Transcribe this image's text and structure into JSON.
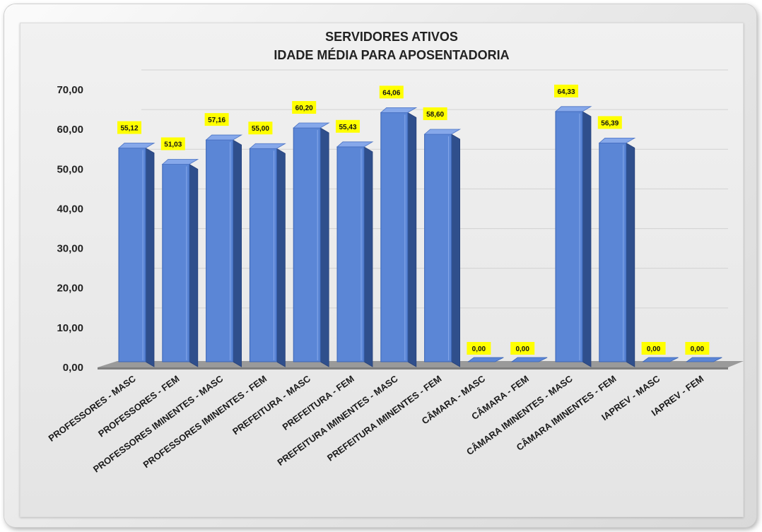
{
  "chart_data": {
    "type": "bar",
    "title": [
      "SERVIDORES ATIVOS",
      "IDADE MÉDIA PARA APOSENTADORIA"
    ],
    "categories": [
      "PROFESSORES - MASC",
      "PROFESSORES - FEM",
      "PROFESSORES IMINENTES - MASC",
      "PROFESSORES IMINENTES - FEM",
      "PREFEITURA - MASC",
      "PREFEITURA - FEM",
      "PREFEITURA IMINENTES - MASC",
      "PREFEITURA IMINENTES - FEM",
      "CÂMARA - MASC",
      "CÂMARA - FEM",
      "CÂMARA IMINENTES - MASC",
      "CÂMARA IMINENTES - FEM",
      "IAPREV - MASC",
      "IAPREV - FEM"
    ],
    "values": [
      55.12,
      51.03,
      57.16,
      55.0,
      60.2,
      55.43,
      64.06,
      58.6,
      0.0,
      0.0,
      64.33,
      56.39,
      0.0,
      0.0
    ],
    "data_labels": [
      "55,12",
      "51,03",
      "57,16",
      "55,00",
      "60,20",
      "55,43",
      "64,06",
      "58,60",
      "0,00",
      "0,00",
      "64,33",
      "56,39",
      "0,00",
      "0,00"
    ],
    "yticks": [
      "0,00",
      "10,00",
      "20,00",
      "30,00",
      "40,00",
      "50,00",
      "60,00",
      "70,00"
    ],
    "ylim": [
      0,
      70
    ],
    "xlabel": "",
    "ylabel": "",
    "grid": true,
    "legend": "none",
    "colors": {
      "bar_front": "#5b86d6",
      "bar_side": "#2f4f8c",
      "bar_top": "#86a8ea",
      "label_bg": "#ffff00",
      "floor": "#7f7f7f"
    }
  }
}
